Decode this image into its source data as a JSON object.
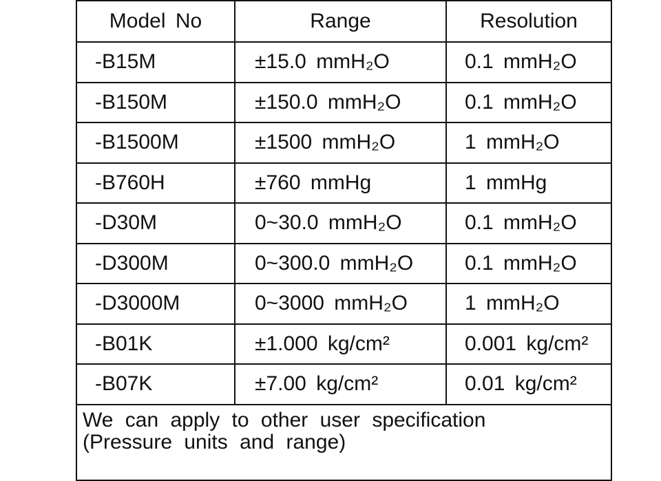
{
  "table": {
    "headers": [
      "Model No",
      "Range",
      "Resolution"
    ],
    "rows": [
      {
        "model": "-B15M",
        "range": "±15.0 mmH₂O",
        "resolution": "0.1 mmH₂O"
      },
      {
        "model": "-B150M",
        "range": "±150.0 mmH₂O",
        "resolution": "0.1 mmH₂O"
      },
      {
        "model": "-B1500M",
        "range": "±1500 mmH₂O",
        "resolution": "1 mmH₂O"
      },
      {
        "model": "-B760H",
        "range": "±760 mmHg",
        "resolution": "1 mmHg"
      },
      {
        "model": "-D30M",
        "range": "0~30.0 mmH₂O",
        "resolution": "0.1 mmH₂O"
      },
      {
        "model": "-D300M",
        "range": "0~300.0 mmH₂O",
        "resolution": "0.1 mmH₂O"
      },
      {
        "model": "-D3000M",
        "range": "0~3000 mmH₂O",
        "resolution": "1 mmH₂O"
      },
      {
        "model": "-B01K",
        "range": "±1.000 kg/cm²",
        "resolution": "0.001 kg/cm²"
      },
      {
        "model": "-B07K",
        "range": "±7.00 kg/cm²",
        "resolution": "0.01 kg/cm²"
      }
    ],
    "note_line1": "We can apply to other user specification",
    "note_line2": "(Pressure units and range)"
  }
}
